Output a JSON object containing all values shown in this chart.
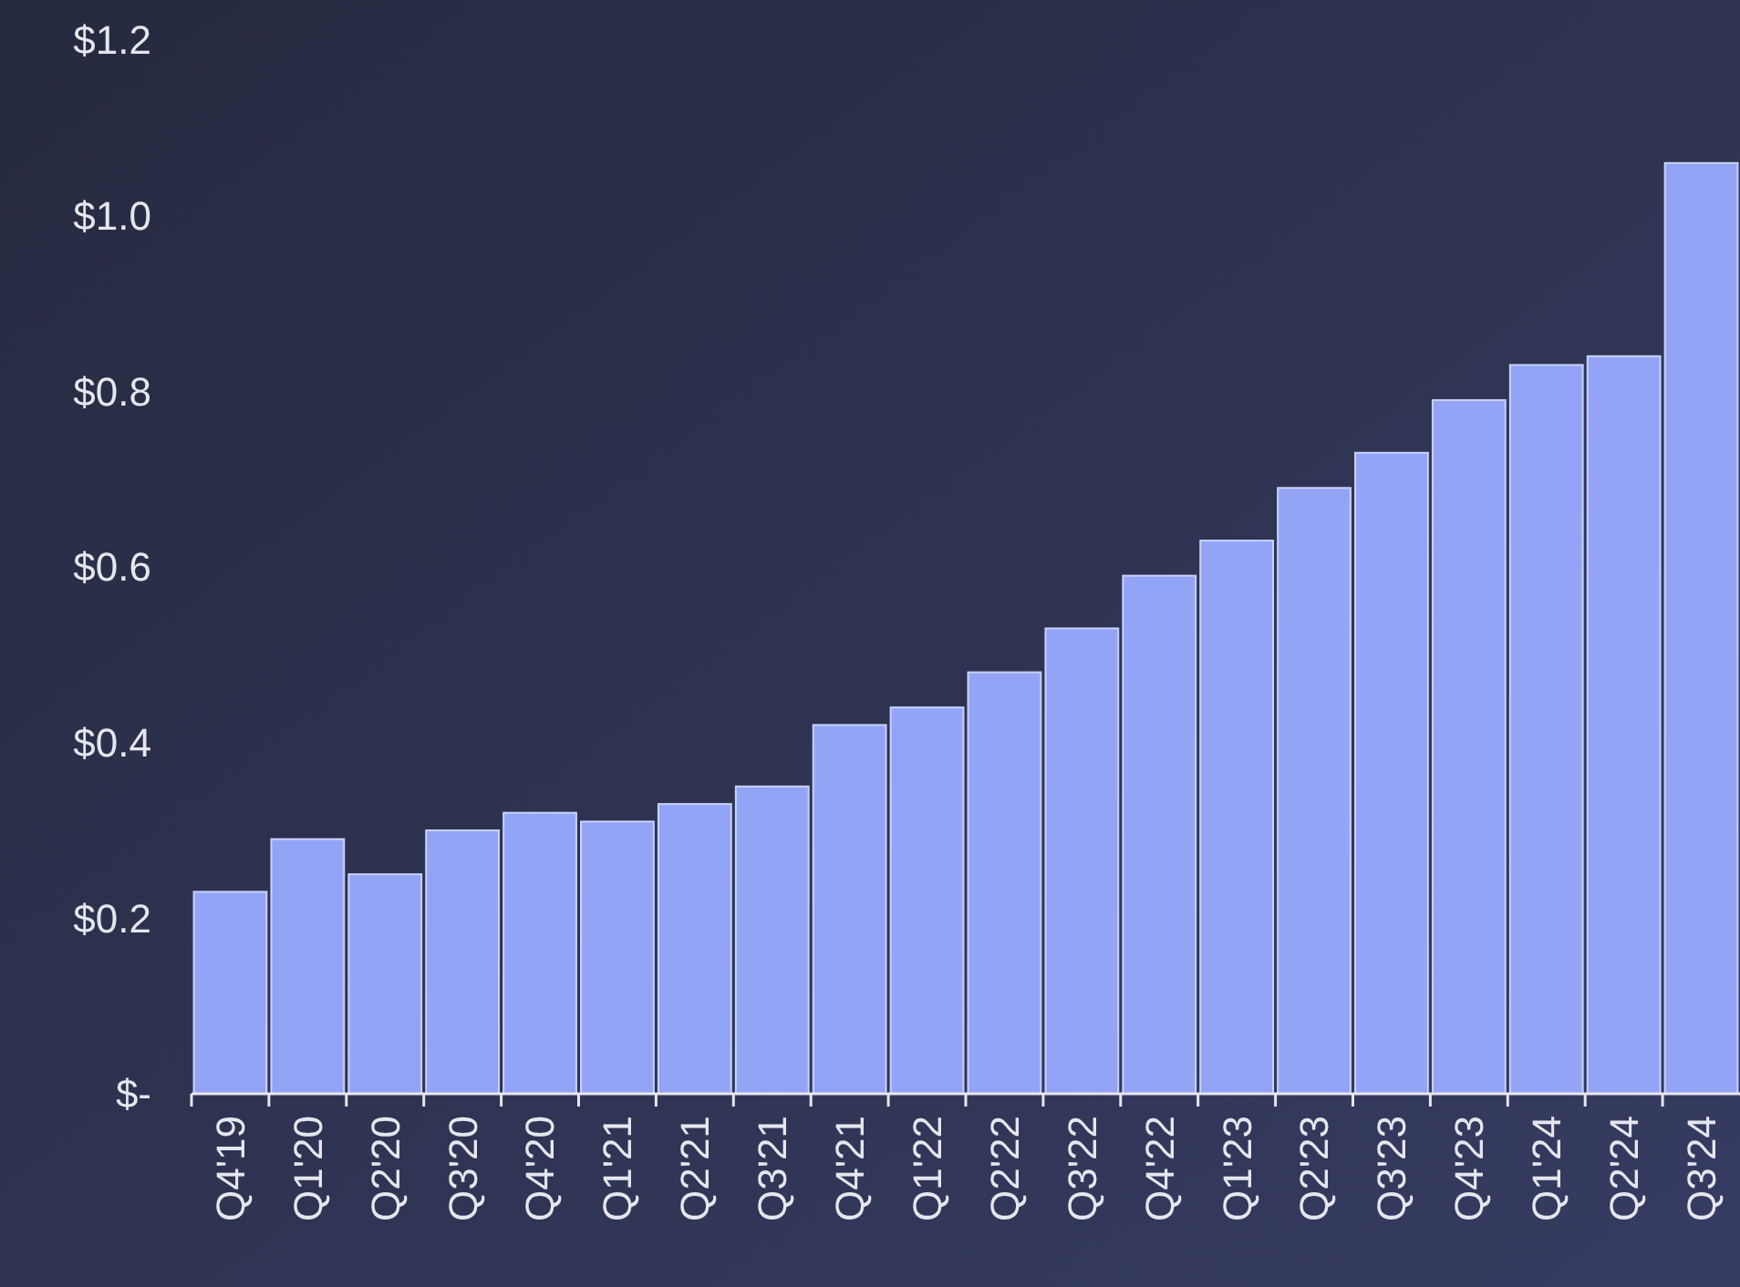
{
  "chart_data": {
    "type": "bar",
    "categories": [
      "Q4'19",
      "Q1'20",
      "Q2'20",
      "Q3'20",
      "Q4'20",
      "Q1'21",
      "Q2'21",
      "Q3'21",
      "Q4'21",
      "Q1'22",
      "Q2'22",
      "Q3'22",
      "Q4'22",
      "Q1'23",
      "Q2'23",
      "Q3'23",
      "Q4'23",
      "Q1'24",
      "Q2'24",
      "Q3'24"
    ],
    "values": [
      0.23,
      0.29,
      0.25,
      0.3,
      0.32,
      0.31,
      0.33,
      0.35,
      0.42,
      0.44,
      0.48,
      0.53,
      0.59,
      0.63,
      0.69,
      0.73,
      0.79,
      0.83,
      0.84,
      1.06
    ],
    "color": "#93a4f7",
    "ylim": [
      0,
      1.2
    ],
    "yticks": [
      {
        "value": 0,
        "label": "$-"
      },
      {
        "value": 0.2,
        "label": "$0.2"
      },
      {
        "value": 0.4,
        "label": "$0.4"
      },
      {
        "value": 0.6,
        "label": "$0.6"
      },
      {
        "value": 0.8,
        "label": "$0.8"
      },
      {
        "value": 1.0,
        "label": "$1.0"
      },
      {
        "value": 1.2,
        "label": "$1.2"
      }
    ],
    "grid": false
  }
}
